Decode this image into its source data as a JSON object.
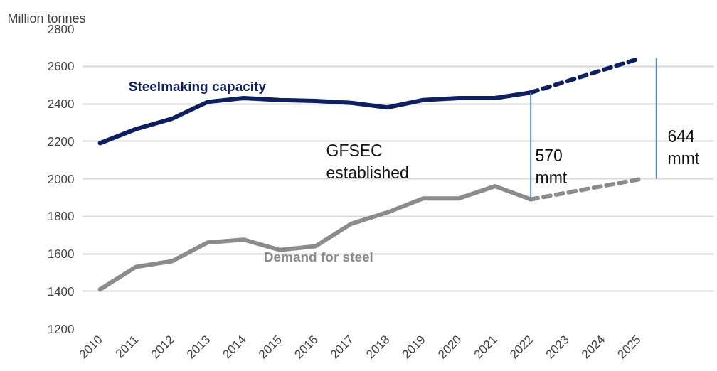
{
  "chart_data": {
    "type": "line",
    "ylabel": "Million tonnes",
    "x": [
      2010,
      2011,
      2012,
      2013,
      2014,
      2015,
      2016,
      2017,
      2018,
      2019,
      2020,
      2021,
      2022
    ],
    "series": [
      {
        "name": "Steelmaking capacity",
        "color": "#0e2060",
        "line_style": "solid",
        "values": [
          2190,
          2265,
          2320,
          2410,
          2430,
          2420,
          2415,
          2405,
          2380,
          2420,
          2430,
          2430,
          2460
        ]
      },
      {
        "color": "#0e2060",
        "line_style": "dashed",
        "x": [
          2022,
          2025
        ],
        "values": [
          2460,
          2640
        ]
      },
      {
        "name": "Demand for steel",
        "color": "#8c8c8c",
        "line_style": "solid",
        "values": [
          1410,
          1530,
          1560,
          1660,
          1675,
          1620,
          1640,
          1760,
          1820,
          1895,
          1895,
          1960,
          1890
        ]
      },
      {
        "color": "#8c8c8c",
        "line_style": "dashed",
        "x": [
          2022,
          2025
        ],
        "values": [
          1890,
          1996
        ]
      },
      {
        "color": "#5a88c6",
        "line_style": "solid",
        "x": [
          2022,
          2022
        ],
        "values": [
          2460,
          1890
        ]
      },
      {
        "color": "#5a88c6",
        "line_style": "solid",
        "x": [
          2025.5,
          2025.5
        ],
        "values": [
          2644,
          2000
        ]
      }
    ],
    "annotations": [
      "GFSEC\nestablished",
      "570\nmmt",
      "644\nmmt"
    ],
    "xlim": [
      2009.5,
      2027.1
    ],
    "xticks": [
      2010,
      2011,
      2012,
      2013,
      2014,
      2015,
      2016,
      2017,
      2018,
      2019,
      2020,
      2021,
      2022,
      2023,
      2024,
      2025
    ],
    "ylim": [
      1200,
      2800
    ],
    "yticks": [
      1200,
      1400,
      1600,
      1800,
      2000,
      2200,
      2400,
      2600,
      2800
    ],
    "grid": "y",
    "marker": "none"
  }
}
